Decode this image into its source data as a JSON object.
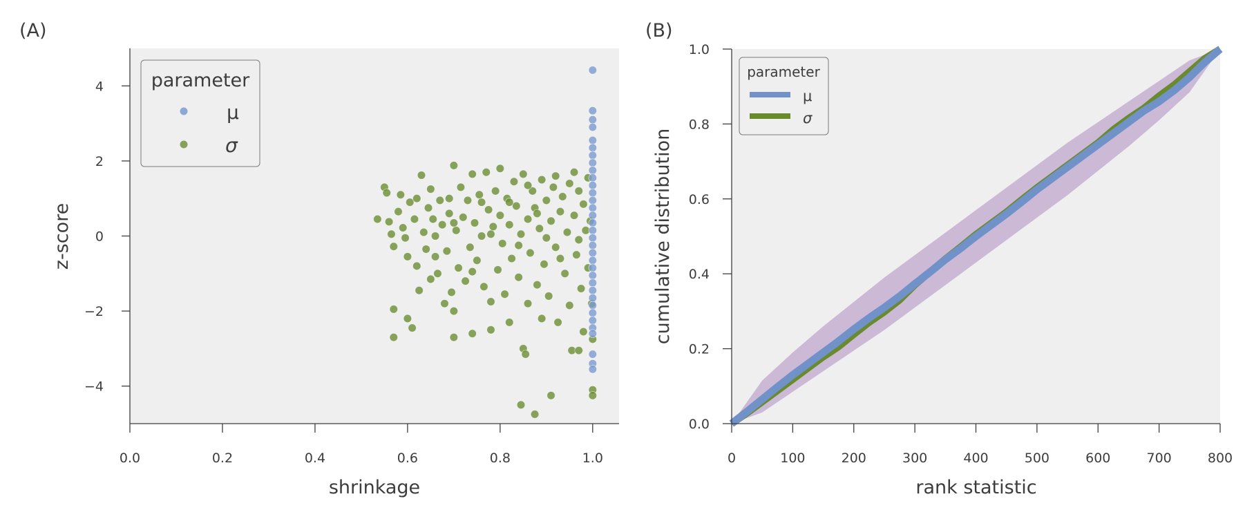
{
  "colors": {
    "mu": "#7192c8",
    "sigma": "#6a8a2e",
    "mu_point": "#7a9bd0",
    "sigma_point": "#6b8f35",
    "band": "#c7b3d3",
    "plot_bg": "#efefef",
    "axis": "#3d3d3d"
  },
  "chart_data": [
    {
      "panel_label": "(A)",
      "type": "scatter",
      "xlabel": "shrinkage",
      "ylabel": "z-score",
      "xlim": [
        0,
        1.057
      ],
      "ylim": [
        -5,
        5
      ],
      "xticks": [
        0.0,
        0.2,
        0.4,
        0.6,
        0.8,
        1.0
      ],
      "xtick_labels": [
        "0.0",
        "0.2",
        "0.4",
        "0.6",
        "0.8",
        "1.0"
      ],
      "yticks": [
        -4,
        -2,
        0,
        2,
        4
      ],
      "ytick_labels": [
        "−4",
        "−2",
        "0",
        "2",
        "4"
      ],
      "grid": false,
      "legend": {
        "title": "parameter",
        "placement": "top-left",
        "entries": [
          {
            "label": "μ",
            "series": "mu"
          },
          {
            "label": "σ",
            "series": "sigma"
          }
        ]
      },
      "series": [
        {
          "name": "sigma",
          "points": [
            [
              0.535,
              0.45
            ],
            [
              0.55,
              1.3
            ],
            [
              0.555,
              1.15
            ],
            [
              0.56,
              0.38
            ],
            [
              0.565,
              0.05
            ],
            [
              0.57,
              -0.28
            ],
            [
              0.57,
              -1.95
            ],
            [
              0.57,
              -2.7
            ],
            [
              0.58,
              0.65
            ],
            [
              0.585,
              1.1
            ],
            [
              0.59,
              0.22
            ],
            [
              0.595,
              -0.05
            ],
            [
              0.6,
              -0.55
            ],
            [
              0.6,
              -2.2
            ],
            [
              0.605,
              0.9
            ],
            [
              0.61,
              -2.45
            ],
            [
              0.615,
              0.45
            ],
            [
              0.62,
              1.0
            ],
            [
              0.62,
              -0.8
            ],
            [
              0.625,
              -1.45
            ],
            [
              0.63,
              1.62
            ],
            [
              0.635,
              0.1
            ],
            [
              0.64,
              -0.35
            ],
            [
              0.645,
              0.75
            ],
            [
              0.65,
              1.25
            ],
            [
              0.65,
              -1.15
            ],
            [
              0.655,
              0.45
            ],
            [
              0.66,
              -0.55
            ],
            [
              0.665,
              -1.0
            ],
            [
              0.67,
              0.95
            ],
            [
              0.675,
              0.3
            ],
            [
              0.68,
              -1.8
            ],
            [
              0.685,
              -0.4
            ],
            [
              0.69,
              1.0
            ],
            [
              0.69,
              0.6
            ],
            [
              0.695,
              -1.5
            ],
            [
              0.7,
              1.88
            ],
            [
              0.7,
              -2.0
            ],
            [
              0.7,
              -2.7
            ],
            [
              0.705,
              0.15
            ],
            [
              0.71,
              -0.85
            ],
            [
              0.715,
              1.3
            ],
            [
              0.72,
              0.5
            ],
            [
              0.725,
              -1.2
            ],
            [
              0.73,
              0.95
            ],
            [
              0.735,
              -0.3
            ],
            [
              0.74,
              1.65
            ],
            [
              0.74,
              -2.6
            ],
            [
              0.745,
              0.35
            ],
            [
              0.75,
              -0.65
            ],
            [
              0.755,
              1.1
            ],
            [
              0.76,
              0.0
            ],
            [
              0.765,
              -1.35
            ],
            [
              0.77,
              1.7
            ],
            [
              0.775,
              0.7
            ],
            [
              0.78,
              -1.75
            ],
            [
              0.78,
              -2.5
            ],
            [
              0.785,
              0.25
            ],
            [
              0.79,
              1.2
            ],
            [
              0.795,
              -0.9
            ],
            [
              0.8,
              1.8
            ],
            [
              0.8,
              0.55
            ],
            [
              0.805,
              -0.2
            ],
            [
              0.81,
              -1.55
            ],
            [
              0.815,
              1.0
            ],
            [
              0.82,
              0.3
            ],
            [
              0.82,
              -2.3
            ],
            [
              0.825,
              -0.6
            ],
            [
              0.83,
              1.45
            ],
            [
              0.835,
              0.8
            ],
            [
              0.84,
              -1.1
            ],
            [
              0.845,
              0.05
            ],
            [
              0.845,
              -4.5
            ],
            [
              0.85,
              1.65
            ],
            [
              0.85,
              -3.0
            ],
            [
              0.855,
              -3.15
            ],
            [
              0.86,
              0.45
            ],
            [
              0.86,
              -1.8
            ],
            [
              0.865,
              -0.45
            ],
            [
              0.87,
              1.2
            ],
            [
              0.875,
              -4.75
            ],
            [
              0.875,
              0.75
            ],
            [
              0.88,
              -1.3
            ],
            [
              0.885,
              0.2
            ],
            [
              0.89,
              1.5
            ],
            [
              0.89,
              -2.2
            ],
            [
              0.895,
              -0.75
            ],
            [
              0.9,
              0.95
            ],
            [
              0.905,
              -1.6
            ],
            [
              0.91,
              0.4
            ],
            [
              0.91,
              -4.25
            ],
            [
              0.915,
              1.3
            ],
            [
              0.92,
              -0.3
            ],
            [
              0.925,
              -2.3
            ],
            [
              0.93,
              0.65
            ],
            [
              0.935,
              1.05
            ],
            [
              0.94,
              -1.0
            ],
            [
              0.945,
              0.1
            ],
            [
              0.95,
              1.4
            ],
            [
              0.95,
              -1.85
            ],
            [
              0.955,
              -3.05
            ],
            [
              0.96,
              0.55
            ],
            [
              0.965,
              -0.5
            ],
            [
              0.97,
              1.2
            ],
            [
              0.97,
              -3.05
            ],
            [
              0.975,
              -1.4
            ],
            [
              0.98,
              0.85
            ],
            [
              0.98,
              -2.55
            ],
            [
              0.985,
              0.15
            ],
            [
              0.99,
              1.55
            ],
            [
              0.99,
              -0.85
            ],
            [
              0.995,
              0.4
            ],
            [
              0.998,
              -1.8
            ],
            [
              1.0,
              -2.75
            ],
            [
              1.0,
              -4.1
            ],
            [
              1.0,
              -4.25
            ],
            [
              0.78,
              0.05
            ],
            [
              0.82,
              0.9
            ],
            [
              0.86,
              1.35
            ],
            [
              0.9,
              -0.05
            ],
            [
              0.93,
              -0.6
            ],
            [
              0.96,
              1.7
            ],
            [
              0.74,
              -0.95
            ],
            [
              0.7,
              0.35
            ],
            [
              0.66,
              0.0
            ],
            [
              0.88,
              0.6
            ],
            [
              0.92,
              1.6
            ],
            [
              0.97,
              -0.1
            ],
            [
              0.84,
              -0.25
            ],
            [
              0.76,
              0.9
            ]
          ]
        },
        {
          "name": "mu",
          "points": [
            [
              1.0,
              4.42
            ],
            [
              1.0,
              3.34
            ],
            [
              1.0,
              3.1
            ],
            [
              1.0,
              2.9
            ],
            [
              1.0,
              2.55
            ],
            [
              1.0,
              2.35
            ],
            [
              1.0,
              2.15
            ],
            [
              1.0,
              1.95
            ],
            [
              1.0,
              1.75
            ],
            [
              1.0,
              1.55
            ],
            [
              1.0,
              1.35
            ],
            [
              1.0,
              1.15
            ],
            [
              1.0,
              0.95
            ],
            [
              1.0,
              0.75
            ],
            [
              1.0,
              0.55
            ],
            [
              1.0,
              0.35
            ],
            [
              1.0,
              0.15
            ],
            [
              1.0,
              -0.05
            ],
            [
              1.0,
              -0.25
            ],
            [
              1.0,
              -0.45
            ],
            [
              1.0,
              -0.65
            ],
            [
              1.0,
              -0.85
            ],
            [
              1.0,
              -1.05
            ],
            [
              1.0,
              -1.25
            ],
            [
              1.0,
              -1.45
            ],
            [
              1.0,
              -1.65
            ],
            [
              1.0,
              -1.85
            ],
            [
              1.0,
              -2.05
            ],
            [
              1.0,
              -2.25
            ],
            [
              1.0,
              -2.45
            ],
            [
              1.0,
              -2.6
            ],
            [
              1.0,
              -3.15
            ],
            [
              1.0,
              -3.4
            ],
            [
              1.0,
              -3.55
            ]
          ]
        }
      ]
    },
    {
      "panel_label": "(B)",
      "type": "line",
      "xlabel": "rank statistic",
      "ylabel": "cumulative distribution",
      "xlim": [
        0,
        800
      ],
      "ylim": [
        0,
        1.0
      ],
      "xticks": [
        0,
        100,
        200,
        300,
        400,
        500,
        600,
        700,
        800
      ],
      "xtick_labels": [
        "0",
        "100",
        "200",
        "300",
        "400",
        "500",
        "600",
        "700",
        "800"
      ],
      "yticks": [
        0.0,
        0.2,
        0.4,
        0.6,
        0.8,
        1.0
      ],
      "ytick_labels": [
        "0.0",
        "0.2",
        "0.4",
        "0.6",
        "0.8",
        "1.0"
      ],
      "grid": false,
      "legend": {
        "title": "parameter",
        "placement": "top-left",
        "entries": [
          {
            "label": "μ",
            "series": "mu"
          },
          {
            "label": "σ",
            "series": "sigma"
          }
        ]
      },
      "band": {
        "x": [
          0,
          50,
          100,
          150,
          200,
          250,
          300,
          350,
          400,
          450,
          500,
          550,
          600,
          650,
          700,
          750,
          800
        ],
        "lower": [
          0.0,
          0.03,
          0.085,
          0.14,
          0.195,
          0.25,
          0.31,
          0.37,
          0.43,
          0.49,
          0.55,
          0.61,
          0.675,
          0.74,
          0.81,
          0.885,
          1.0
        ],
        "upper": [
          0.0,
          0.115,
          0.19,
          0.26,
          0.325,
          0.39,
          0.45,
          0.51,
          0.57,
          0.63,
          0.69,
          0.75,
          0.805,
          0.86,
          0.915,
          0.97,
          1.0
        ]
      },
      "series": [
        {
          "name": "sigma",
          "x": [
            0,
            25,
            50,
            75,
            100,
            125,
            150,
            175,
            200,
            225,
            250,
            275,
            300,
            325,
            350,
            375,
            400,
            425,
            450,
            475,
            500,
            525,
            550,
            575,
            600,
            625,
            650,
            675,
            700,
            725,
            750,
            775,
            800
          ],
          "y": [
            0.0,
            0.028,
            0.058,
            0.088,
            0.118,
            0.148,
            0.178,
            0.205,
            0.238,
            0.27,
            0.298,
            0.33,
            0.37,
            0.405,
            0.44,
            0.472,
            0.505,
            0.535,
            0.565,
            0.598,
            0.63,
            0.66,
            0.69,
            0.72,
            0.75,
            0.785,
            0.815,
            0.842,
            0.875,
            0.905,
            0.94,
            0.975,
            1.0
          ]
        },
        {
          "name": "mu",
          "x": [
            0,
            25,
            50,
            75,
            100,
            125,
            150,
            175,
            200,
            225,
            250,
            275,
            300,
            325,
            350,
            375,
            400,
            425,
            450,
            475,
            500,
            525,
            550,
            575,
            600,
            625,
            650,
            675,
            700,
            725,
            750,
            775,
            800
          ],
          "y": [
            0.0,
            0.032,
            0.065,
            0.098,
            0.13,
            0.16,
            0.19,
            0.22,
            0.252,
            0.282,
            0.31,
            0.34,
            0.373,
            0.405,
            0.438,
            0.468,
            0.5,
            0.53,
            0.56,
            0.592,
            0.625,
            0.655,
            0.685,
            0.715,
            0.745,
            0.775,
            0.805,
            0.835,
            0.86,
            0.89,
            0.925,
            0.965,
            1.0
          ]
        }
      ]
    }
  ]
}
